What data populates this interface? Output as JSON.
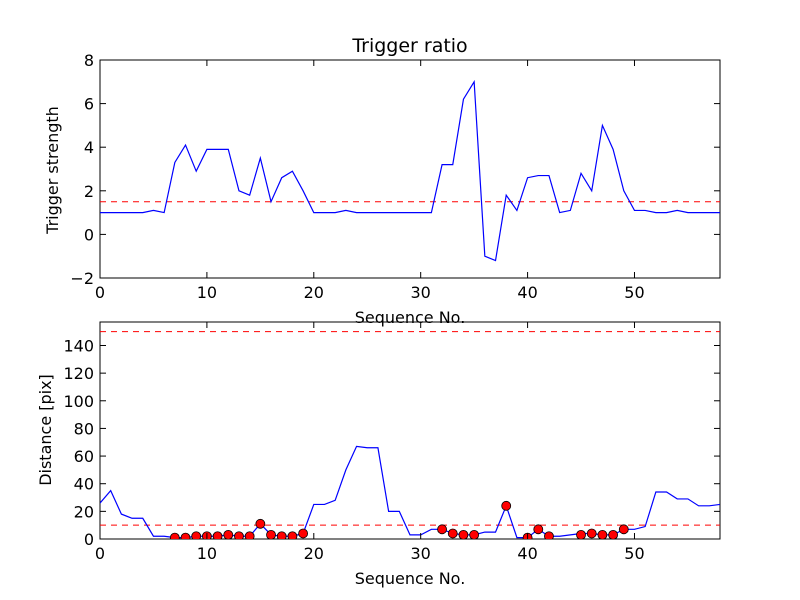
{
  "chart_data": [
    {
      "type": "line",
      "title": "Trigger ratio",
      "xlabel": "Sequence No.",
      "ylabel": "Trigger strength",
      "xlim": [
        0,
        58
      ],
      "ylim": [
        -2,
        8
      ],
      "xticks": [
        0,
        10,
        20,
        30,
        40,
        50
      ],
      "yticks": [
        -2,
        0,
        2,
        4,
        6,
        8
      ],
      "grid": false,
      "series": [
        {
          "color": "#0000ff",
          "x": [
            0,
            1,
            2,
            3,
            4,
            5,
            6,
            7,
            8,
            9,
            10,
            11,
            12,
            13,
            14,
            15,
            16,
            17,
            18,
            19,
            20,
            21,
            22,
            23,
            24,
            25,
            26,
            27,
            28,
            29,
            30,
            31,
            32,
            33,
            34,
            35,
            36,
            37,
            38,
            39,
            40,
            41,
            42,
            43,
            44,
            45,
            46,
            47,
            48,
            49,
            50,
            51,
            52,
            53,
            54,
            55,
            56,
            57,
            58
          ],
          "y": [
            1,
            1,
            1,
            1,
            1,
            1.1,
            1,
            3.3,
            4.1,
            2.9,
            3.9,
            3.9,
            3.9,
            2,
            1.8,
            3.5,
            1.5,
            2.6,
            2.9,
            2,
            1,
            1,
            1,
            1.1,
            1,
            1,
            1,
            1,
            1,
            1,
            1,
            1,
            3.2,
            3.2,
            6.2,
            7,
            -1,
            -1.2,
            1.8,
            1.1,
            2.6,
            2.7,
            2.7,
            1,
            1.1,
            2.8,
            2,
            5,
            3.9,
            2,
            1.1,
            1.1,
            1,
            1,
            1.1,
            1,
            1,
            1,
            1
          ]
        }
      ],
      "hlines": [
        {
          "y": 1.5,
          "color": "#ff0000",
          "style": "dashed"
        }
      ]
    },
    {
      "type": "line",
      "title": "",
      "xlabel": "Sequence No.",
      "ylabel": "Distance [pix]",
      "xlim": [
        0,
        58
      ],
      "ylim": [
        0,
        157
      ],
      "xticks": [
        0,
        10,
        20,
        30,
        40,
        50
      ],
      "yticks": [
        0,
        20,
        40,
        60,
        80,
        100,
        120,
        140
      ],
      "grid": false,
      "series": [
        {
          "color": "#0000ff",
          "x": [
            0,
            1,
            2,
            3,
            4,
            5,
            6,
            7,
            8,
            9,
            10,
            11,
            12,
            13,
            14,
            15,
            16,
            17,
            18,
            19,
            20,
            21,
            22,
            23,
            24,
            25,
            26,
            27,
            28,
            29,
            30,
            31,
            32,
            33,
            34,
            35,
            36,
            37,
            38,
            39,
            40,
            41,
            42,
            43,
            44,
            45,
            46,
            47,
            48,
            49,
            50,
            51,
            52,
            53,
            54,
            55,
            56,
            57,
            58
          ],
          "y": [
            26,
            35,
            18,
            15,
            15,
            2,
            2,
            1,
            1,
            2,
            2,
            2,
            3,
            2,
            2,
            11,
            3,
            2,
            2,
            4,
            25,
            25,
            28,
            50,
            67,
            66,
            66,
            20,
            20,
            3,
            3,
            7,
            7,
            4,
            3,
            3,
            5,
            5,
            24,
            1,
            1,
            7,
            2,
            2,
            3,
            4,
            4,
            3,
            3,
            7,
            7,
            9,
            34,
            34,
            29,
            29,
            24,
            24,
            25
          ]
        },
        {
          "type": "scatter",
          "color": "#ff0000",
          "x": [
            7,
            8,
            9,
            10,
            11,
            12,
            13,
            14,
            15,
            16,
            17,
            18,
            19,
            32,
            33,
            34,
            35,
            38,
            40,
            41,
            42,
            45,
            46,
            47,
            48,
            49
          ],
          "y": [
            1,
            1,
            2,
            2,
            2,
            3,
            2,
            2,
            11,
            3,
            2,
            2,
            4,
            7,
            4,
            3,
            3,
            24,
            1,
            7,
            2,
            3,
            4,
            3,
            3,
            7
          ]
        }
      ],
      "hlines": [
        {
          "y": 150,
          "color": "#ff0000",
          "style": "dashed"
        },
        {
          "y": 10,
          "color": "#ff0000",
          "style": "dashed"
        }
      ]
    }
  ]
}
